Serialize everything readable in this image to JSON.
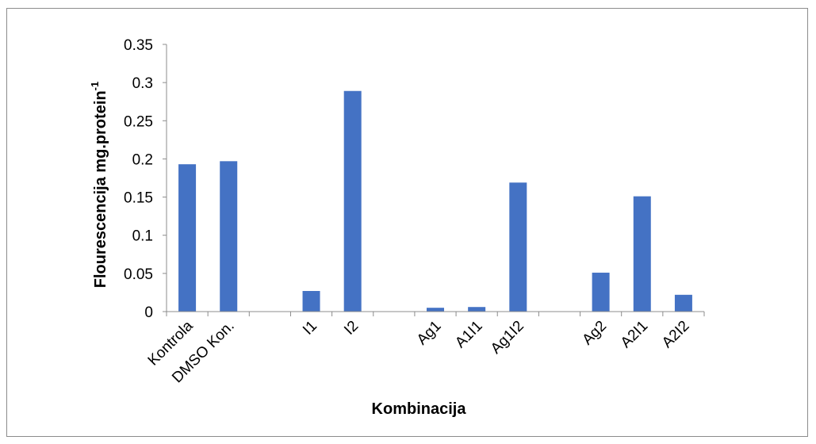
{
  "chart_data": {
    "type": "bar",
    "title": "",
    "xlabel": "Kombinacija",
    "ylabel": "Flourescencija mg.protein",
    "ylabel_superscript": "-1",
    "ylim": [
      0,
      0.35
    ],
    "yticks": [
      "0",
      "0.05",
      "0.1",
      "0.15",
      "0.2",
      "0.25",
      "0.3",
      "0.35"
    ],
    "grid": false,
    "legend": "none",
    "bar_color": "#4472c4",
    "categories": [
      "Kontrola",
      "DMSO Kon.",
      "",
      "I1",
      "I2",
      "",
      "Ag1",
      "A1I1",
      "Ag1I2",
      "",
      "Ag2",
      "A2I1",
      "A2I2"
    ],
    "values": [
      0.193,
      0.197,
      null,
      0.027,
      0.289,
      null,
      0.005,
      0.006,
      0.169,
      null,
      0.051,
      0.151,
      0.022
    ]
  }
}
